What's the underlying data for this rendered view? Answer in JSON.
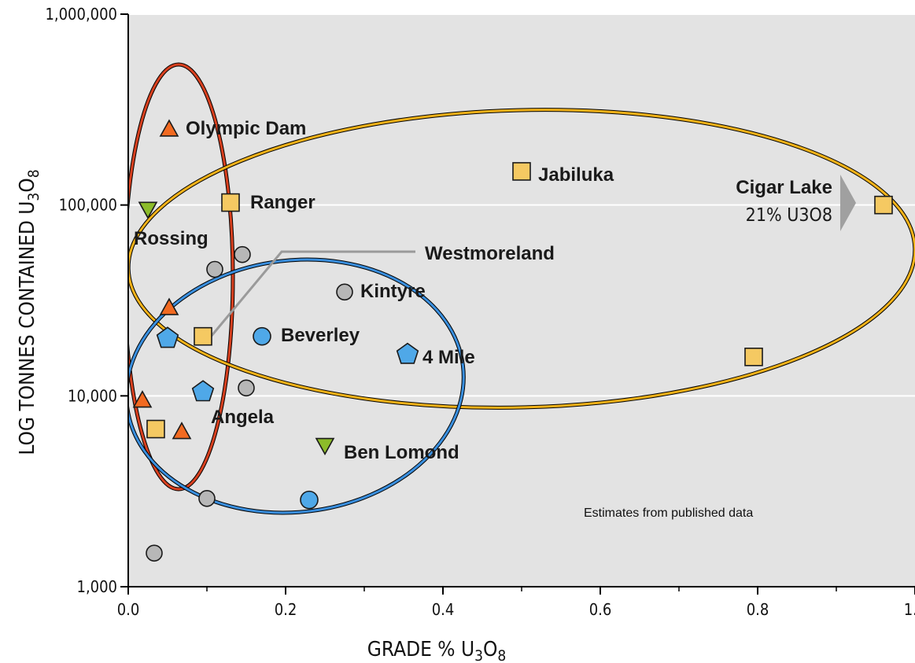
{
  "chart_data": {
    "type": "scatter",
    "title": "",
    "xlabel": "GRADE % U3O8",
    "ylabel": "LOG TONNES CONTAINED U3O8",
    "x_ticks": [
      "0.0",
      "0.2",
      "0.4",
      "0.6",
      "0.8",
      "1.0"
    ],
    "x_tick_values": [
      0,
      0.2,
      0.4,
      0.6,
      0.8,
      1.0
    ],
    "y_ticks": [
      "1,000",
      "10,000",
      "100,000",
      "1,000,000"
    ],
    "y_tick_values": [
      1000,
      10000,
      100000,
      1000000
    ],
    "xlim": [
      0,
      1.0
    ],
    "ylim": [
      1000,
      1000000
    ],
    "y_scale": "log",
    "grid": "horizontal",
    "note": "Estimates from published data",
    "cigar_lake_note": "21% U3O8",
    "colors": {
      "background": "#e3e3e3",
      "triangle_up": "#f26a21",
      "triangle_down": "#8cbc2a",
      "square": "#f5c962",
      "circle_gray": "#b7b7b7",
      "circle_blue": "#4fa8e8",
      "pentagon": "#4fa8e8",
      "ellipse_red": "#d8401f",
      "ellipse_orange": "#f2b219",
      "ellipse_blue": "#3a8fde",
      "pointer": "#9a9a9a"
    },
    "points": [
      {
        "label": "Olympic Dam",
        "shape": "triangle_up",
        "x": 0.052,
        "y": 250000
      },
      {
        "label": "",
        "shape": "triangle_up",
        "x": 0.052,
        "y": 29000
      },
      {
        "label": "",
        "shape": "triangle_up",
        "x": 0.018,
        "y": 9500
      },
      {
        "label": "",
        "shape": "triangle_up",
        "x": 0.068,
        "y": 6500
      },
      {
        "label": "Rossing",
        "shape": "triangle_down",
        "x": 0.025,
        "y": 95000
      },
      {
        "label": "Ben Lomond",
        "shape": "triangle_down",
        "x": 0.25,
        "y": 5500
      },
      {
        "label": "Ranger",
        "shape": "square",
        "x": 0.13,
        "y": 103000
      },
      {
        "label": "Jabiluka",
        "shape": "square",
        "x": 0.5,
        "y": 150000
      },
      {
        "label": "Cigar Lake",
        "shape": "square",
        "x": 0.96,
        "y": 100000
      },
      {
        "label": "Westmoreland",
        "shape": "square",
        "x": 0.095,
        "y": 20500
      },
      {
        "label": "",
        "shape": "square",
        "x": 0.035,
        "y": 6700
      },
      {
        "label": "",
        "shape": "square",
        "x": 0.795,
        "y": 16000
      },
      {
        "label": "",
        "shape": "circle_gray",
        "x": 0.145,
        "y": 55000
      },
      {
        "label": "",
        "shape": "circle_gray",
        "x": 0.11,
        "y": 46000
      },
      {
        "label": "Kintyre",
        "shape": "circle_gray",
        "x": 0.275,
        "y": 35000
      },
      {
        "label": "",
        "shape": "circle_gray",
        "x": 0.15,
        "y": 11000
      },
      {
        "label": "",
        "shape": "circle_gray",
        "x": 0.1,
        "y": 2900
      },
      {
        "label": "",
        "shape": "circle_gray",
        "x": 0.033,
        "y": 1500
      },
      {
        "label": "Beverley",
        "shape": "circle_blue",
        "x": 0.17,
        "y": 20500
      },
      {
        "label": "",
        "shape": "circle_blue",
        "x": 0.23,
        "y": 2850
      },
      {
        "label": "4 Mile",
        "shape": "pentagon",
        "x": 0.355,
        "y": 16500
      },
      {
        "label": "Angela",
        "shape": "pentagon",
        "x": 0.095,
        "y": 10500
      },
      {
        "label": "",
        "shape": "pentagon",
        "x": 0.05,
        "y": 20000
      }
    ]
  }
}
